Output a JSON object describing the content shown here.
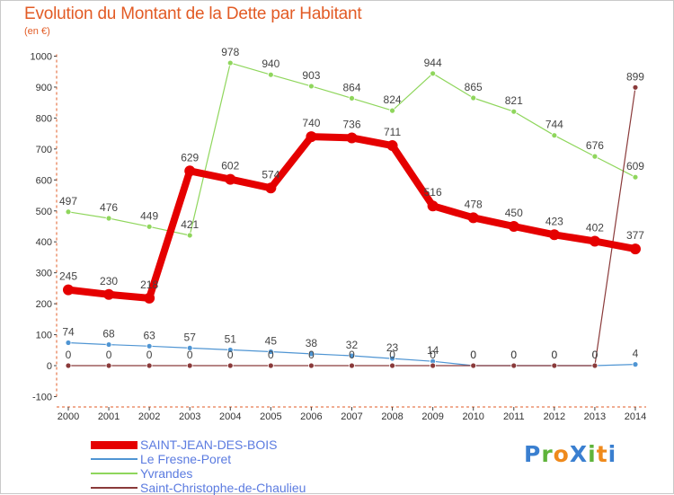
{
  "title": "Evolution du Montant de la Dette par Habitant",
  "unit_label": "(en €)",
  "brand": {
    "text": "ProXiti",
    "letter_colors": [
      "#3a7fd0",
      "#5fb43a",
      "#ef8a1c",
      "#3a7fd0",
      "#5fb43a",
      "#ef8a1c",
      "#3a7fd0"
    ]
  },
  "chart_data": {
    "type": "line",
    "x": [
      "2000",
      "2001",
      "2002",
      "2003",
      "2004",
      "2005",
      "2006",
      "2007",
      "2008",
      "2009",
      "2010",
      "2011",
      "2012",
      "2013",
      "2014"
    ],
    "ylim": [
      -100,
      1000
    ],
    "yticks": [
      "-100",
      "0",
      "100",
      "200",
      "300",
      "400",
      "500",
      "600",
      "700",
      "800",
      "900",
      "1000"
    ],
    "grid": false,
    "legend_position": "bottom-left",
    "series": [
      {
        "name": "Le Fresne-Poret",
        "color": "#4f95d3",
        "values": [
          74,
          68,
          63,
          57,
          51,
          45,
          38,
          32,
          23,
          14,
          0,
          0,
          0,
          0,
          4
        ],
        "labels": [
          "74",
          "68",
          "63",
          "57",
          "51",
          "45",
          "38",
          "32",
          "23",
          "14",
          "0",
          "0",
          "0",
          "0",
          "4"
        ]
      },
      {
        "name": "Yvrandes",
        "color": "#8fd65c",
        "values": [
          497,
          476,
          449,
          421,
          978,
          940,
          903,
          864,
          824,
          944,
          865,
          821,
          744,
          676,
          609
        ],
        "labels": [
          "497",
          "476",
          "449",
          "421",
          "978",
          "940",
          "903",
          "864",
          "824",
          "944",
          "865",
          "821",
          "744",
          "676",
          "609"
        ]
      },
      {
        "name": "Saint-Christophe-de-Chaulieu",
        "color": "#8a3a3a",
        "values": [
          0,
          0,
          0,
          0,
          0,
          0,
          0,
          0,
          0,
          0,
          0,
          0,
          0,
          0,
          899
        ],
        "labels": [
          "0",
          "0",
          "0",
          "0",
          "0",
          "0",
          "0",
          "0",
          "0",
          "0",
          "0",
          "0",
          "0",
          "0",
          "899"
        ]
      },
      {
        "name": "SAINT-JEAN-DES-BOIS",
        "color": "#e50000",
        "values": [
          245,
          230,
          218,
          629,
          602,
          574,
          740,
          736,
          711,
          516,
          478,
          450,
          423,
          402,
          377
        ],
        "labels": [
          "245",
          "230",
          "218",
          "629",
          "602",
          "574",
          "740",
          "736",
          "711",
          "516",
          "478",
          "450",
          "423",
          "402",
          "377"
        ]
      }
    ],
    "legend": [
      "SAINT-JEAN-DES-BOIS",
      "Le Fresne-Poret",
      "Yvrandes",
      "Saint-Christophe-de-Chaulieu"
    ]
  }
}
